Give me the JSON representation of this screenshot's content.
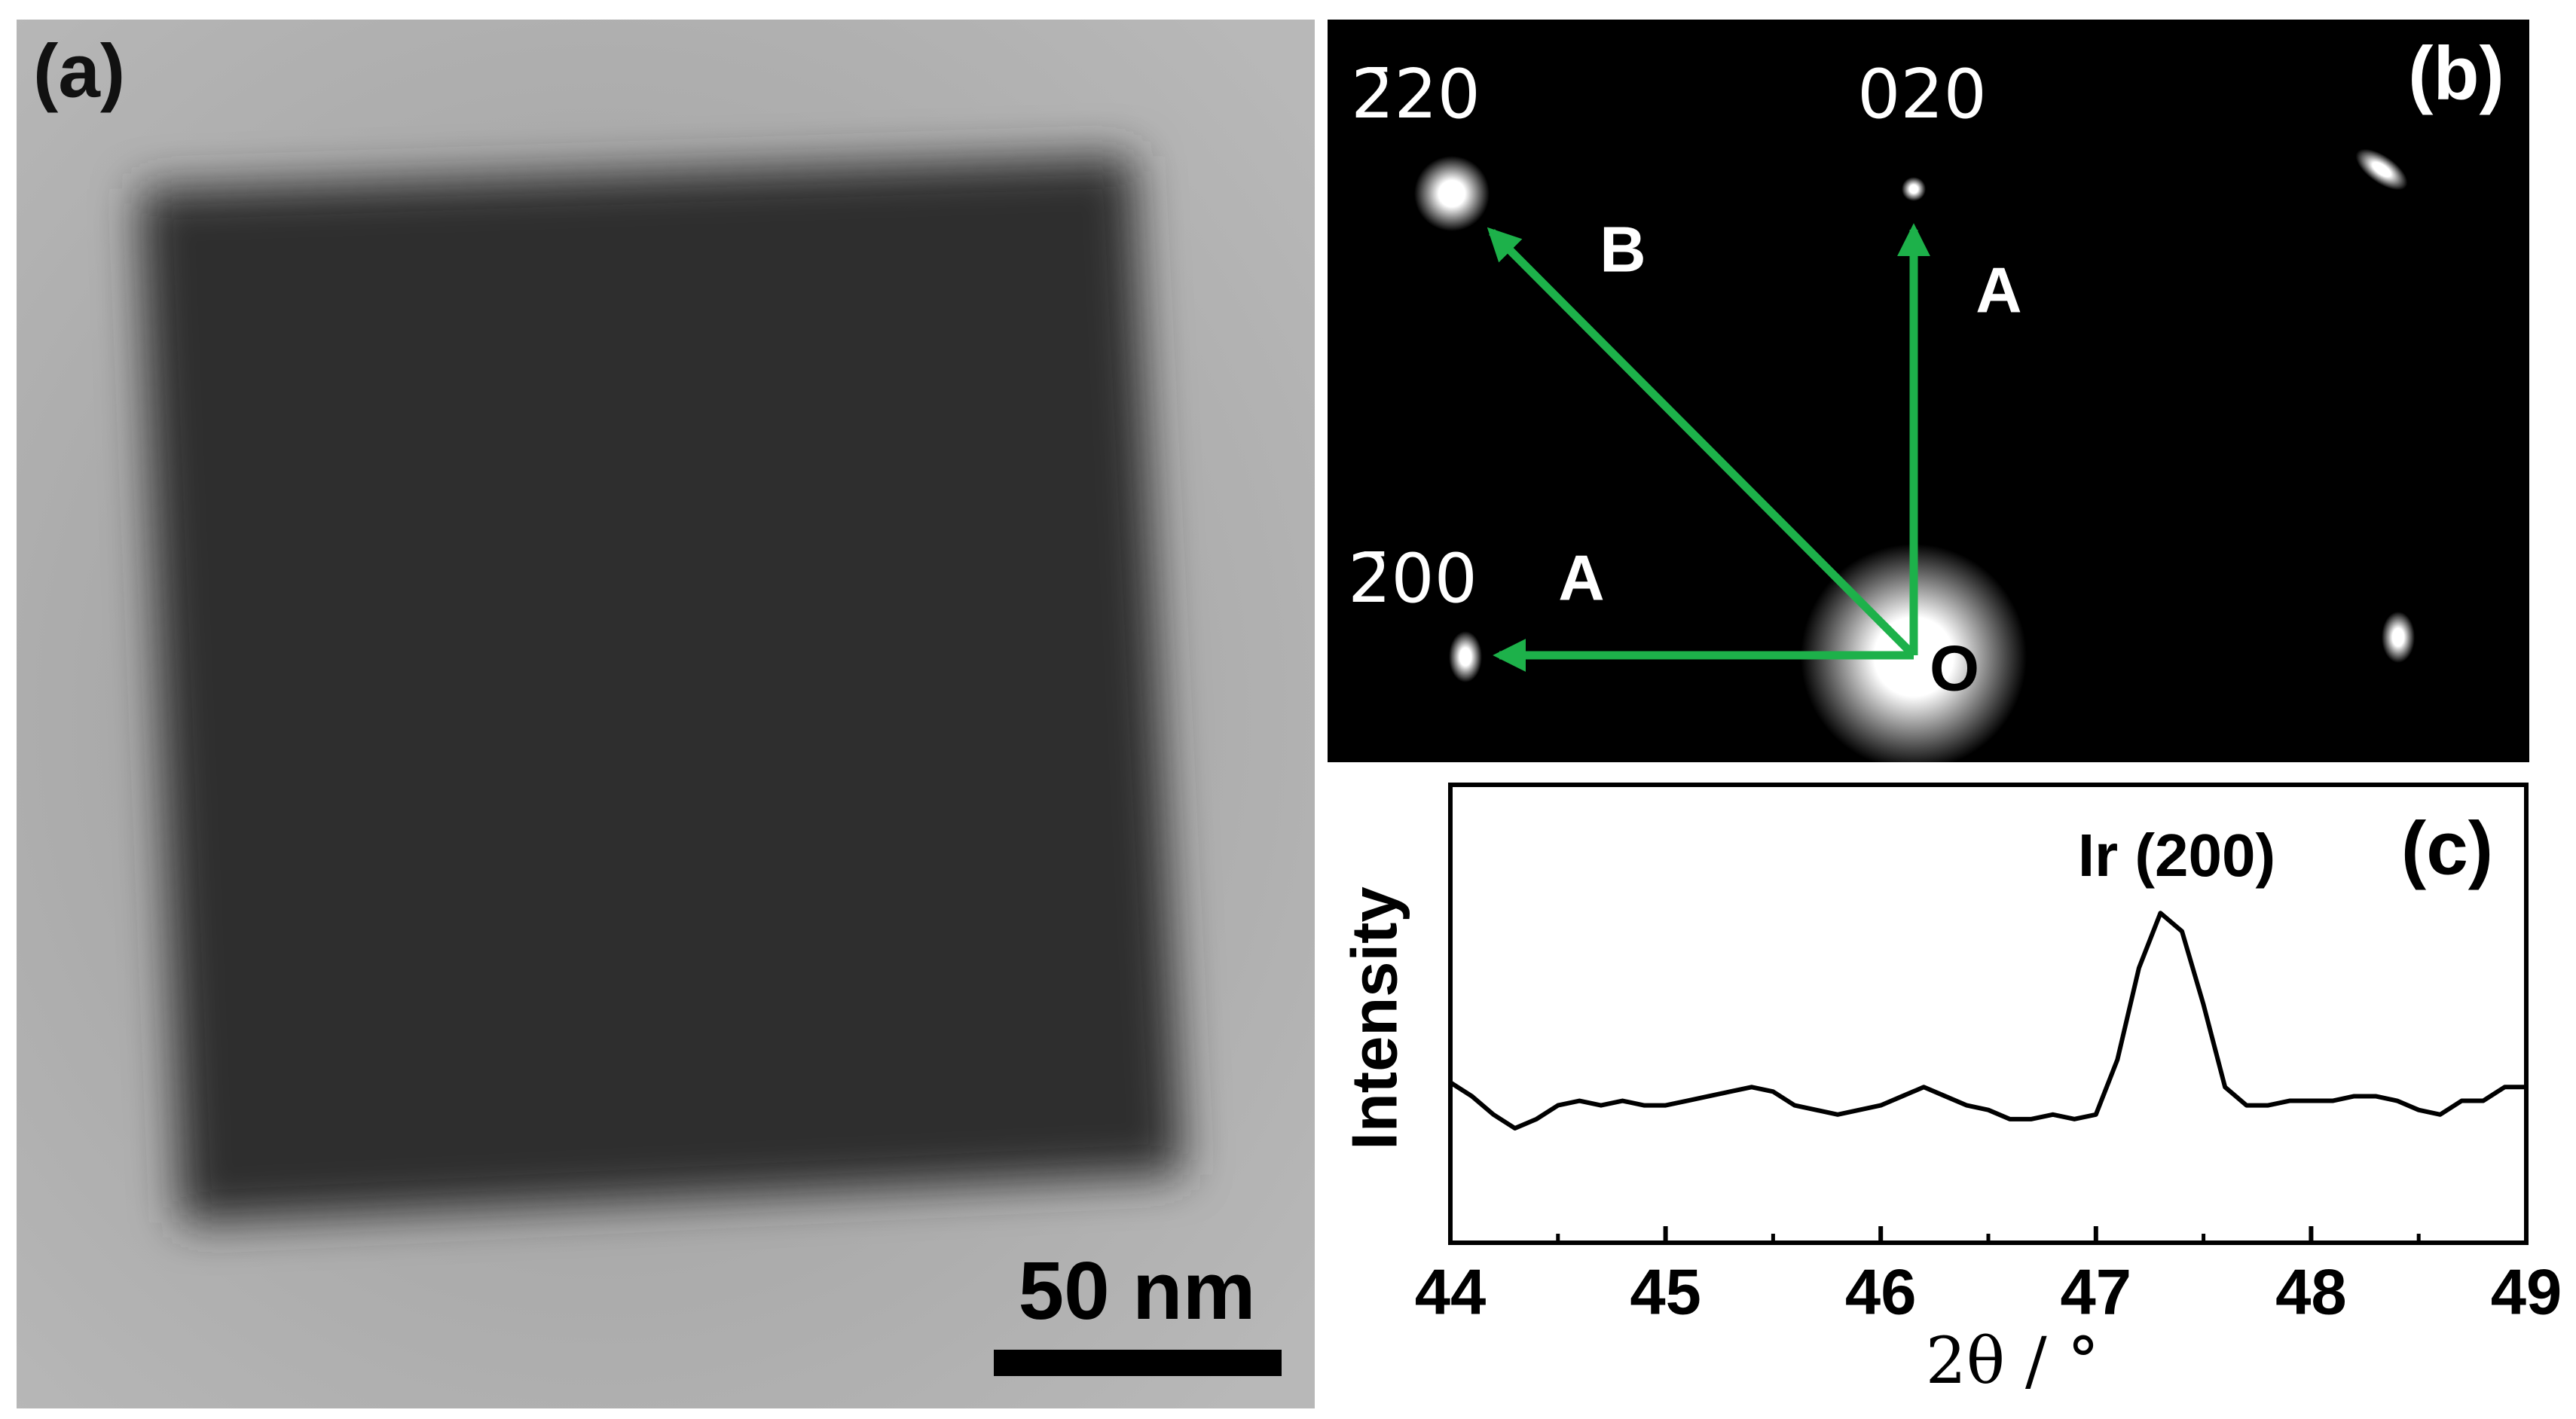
{
  "panel_a": {
    "label": "(a)",
    "scale_bar": "50 nm"
  },
  "panel_b": {
    "label": "(b)",
    "spots": [
      "2̄20",
      "020",
      "2̄00"
    ],
    "arrows": [
      "B",
      "A",
      "A"
    ],
    "origin": "O"
  },
  "chart_data": {
    "type": "line",
    "label": "(c)",
    "annotation": "Ir (200)",
    "x_label": "2θ / °",
    "y_label": "Intensity",
    "color": "#000000",
    "x": [
      44.0,
      44.1,
      44.2,
      44.3,
      44.4,
      44.5,
      44.6,
      44.7,
      44.8,
      44.9,
      45.0,
      45.1,
      45.2,
      45.3,
      45.4,
      45.5,
      45.6,
      45.7,
      45.8,
      45.9,
      46.0,
      46.1,
      46.2,
      46.3,
      46.4,
      46.5,
      46.6,
      46.7,
      46.8,
      46.9,
      47.0,
      47.1,
      47.2,
      47.3,
      47.4,
      47.5,
      47.6,
      47.7,
      47.8,
      47.9,
      48.0,
      48.1,
      48.2,
      48.3,
      48.4,
      48.5,
      48.6,
      48.7,
      48.8,
      48.9,
      49.0
    ],
    "values": [
      35,
      32,
      28,
      25,
      27,
      30,
      31,
      30,
      31,
      30,
      30,
      31,
      32,
      33,
      34,
      33,
      30,
      29,
      28,
      29,
      30,
      32,
      34,
      32,
      30,
      29,
      27,
      27,
      28,
      27,
      28,
      40,
      60,
      72,
      68,
      52,
      34,
      30,
      30,
      31,
      31,
      31,
      32,
      32,
      31,
      29,
      28,
      31,
      31,
      34,
      34
    ],
    "xlim": [
      44,
      49
    ],
    "ylim": [
      0,
      100
    ],
    "xticks": [
      44,
      45,
      46,
      47,
      48,
      49
    ],
    "minor_xticks": [
      44.5,
      45.5,
      46.5,
      47.5,
      48.5
    ]
  }
}
